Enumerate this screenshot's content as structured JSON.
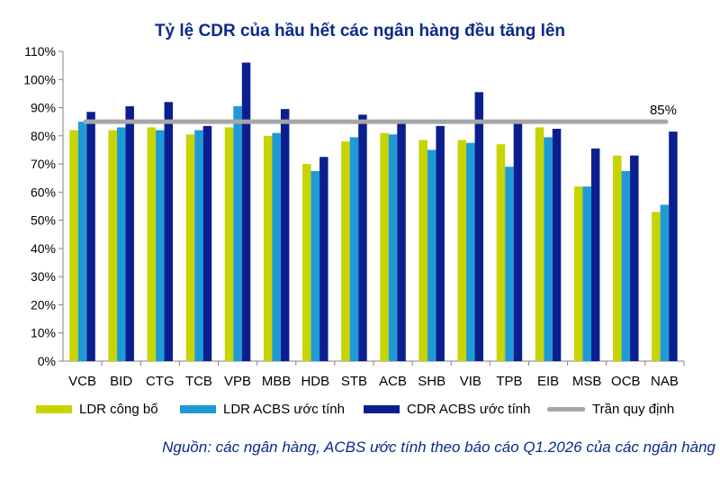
{
  "chart_data": {
    "type": "bar",
    "title": "Tỷ lệ CDR của hầu hết các ngân hàng đều tăng lên",
    "categories": [
      "VCB",
      "BID",
      "CTG",
      "TCB",
      "VPB",
      "MBB",
      "HDB",
      "STB",
      "ACB",
      "SHB",
      "VIB",
      "TPB",
      "EIB",
      "MSB",
      "OCB",
      "NAB"
    ],
    "series": [
      {
        "name": "LDR công bố",
        "color": "#c8d400",
        "values": [
          82,
          82,
          83,
          80.5,
          83,
          80,
          70,
          78,
          81,
          78.5,
          78.5,
          77,
          83,
          62,
          73,
          53
        ]
      },
      {
        "name": "LDR ACBS ước tính",
        "color": "#1e9bd7",
        "values": [
          85,
          83,
          82,
          82,
          90.5,
          81,
          67.5,
          79.5,
          80.5,
          75,
          77.5,
          69,
          79.5,
          62,
          67.5,
          55.5
        ]
      },
      {
        "name": "CDR ACBS ước tính",
        "color": "#0a1f8f",
        "values": [
          88.5,
          90.5,
          92,
          83.5,
          106,
          89.5,
          72.5,
          87.5,
          85,
          83.5,
          95.5,
          85,
          82.5,
          75.5,
          73,
          81.5
        ]
      }
    ],
    "reference_line": {
      "name": "Trần quy định",
      "value": 85,
      "label": "85%",
      "color": "#a6a6a6"
    },
    "ylim": [
      0,
      110
    ],
    "yticks": [
      "0%",
      "10%",
      "20%",
      "30%",
      "40%",
      "50%",
      "60%",
      "70%",
      "80%",
      "90%",
      "100%",
      "110%"
    ],
    "grid": false,
    "legend_position": "bottom",
    "source": "Nguồn: các ngân hàng, ACBS ước tính theo báo cáo Q1.2026 của các ngân hàng"
  }
}
